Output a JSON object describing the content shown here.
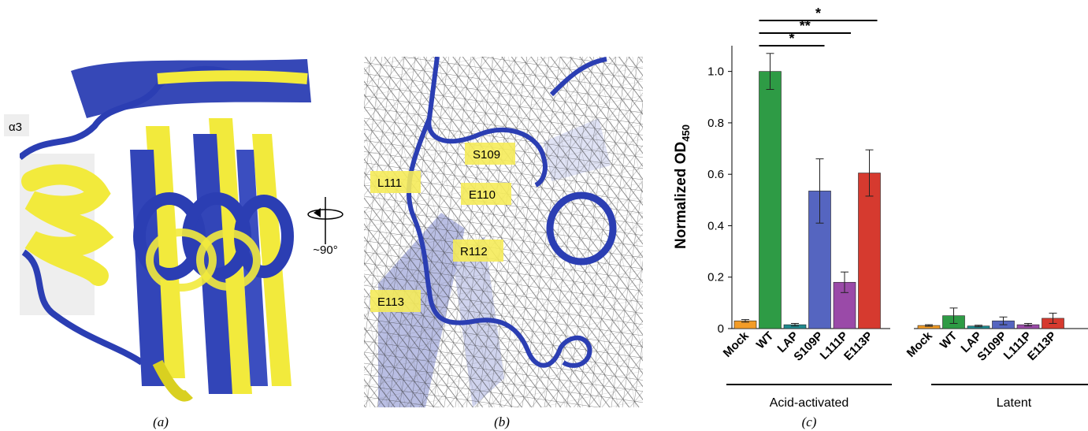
{
  "panel_a": {
    "caption": "(a)",
    "helix_label": "α3",
    "colors": {
      "model1": "#fff200",
      "model2": "#2b3eb3"
    }
  },
  "rotation": {
    "label": "~90°"
  },
  "panel_b": {
    "caption": "(b)",
    "residue_labels": [
      "S109",
      "L111",
      "E110",
      "R112",
      "E113"
    ],
    "colors": {
      "backbone": "#2b3eb3",
      "mesh": "#333333",
      "label_bg": "#f5eb5a"
    }
  },
  "panel_c": {
    "caption": "(c)",
    "significance": [
      "*",
      "**",
      "*"
    ]
  },
  "chart_data": {
    "type": "bar",
    "ylabel": "Normalized OD",
    "ylabel_subscript": "450",
    "ylim": [
      0,
      1.1
    ],
    "yticks": [
      "0",
      "0.2",
      "0.4",
      "0.6",
      "0.8",
      "1.0"
    ],
    "ytick_values": [
      0,
      0.2,
      0.4,
      0.6,
      0.8,
      1.0
    ],
    "groups": [
      {
        "name": "Acid-activated",
        "categories": [
          "Mock",
          "WT",
          "LAP",
          "S109P",
          "L111P",
          "E113P"
        ],
        "values": [
          0.03,
          1.0,
          0.015,
          0.535,
          0.18,
          0.605
        ],
        "errors": [
          0.005,
          0.07,
          0.005,
          0.125,
          0.04,
          0.09
        ]
      },
      {
        "name": "Latent",
        "categories": [
          "Mock",
          "WT",
          "LAP",
          "S109P",
          "L111P",
          "E113P"
        ],
        "values": [
          0.012,
          0.05,
          0.01,
          0.03,
          0.015,
          0.04
        ],
        "errors": [
          0.003,
          0.03,
          0.003,
          0.015,
          0.005,
          0.02
        ]
      }
    ],
    "colors": [
      "#f39c26",
      "#2e9b45",
      "#1f8a8f",
      "#5565c0",
      "#9a4aa8",
      "#d63a2f"
    ],
    "grid": false
  }
}
